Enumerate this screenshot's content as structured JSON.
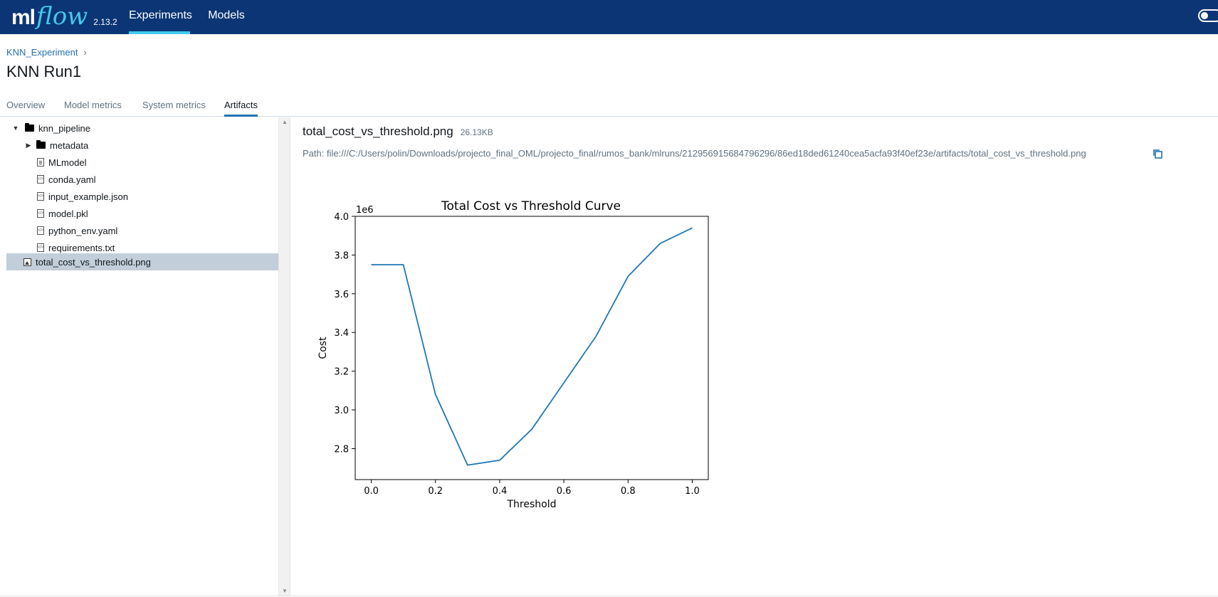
{
  "topbar": {
    "logo_ml": "ml",
    "logo_flow": "flow",
    "version": "2.13.2",
    "nav": [
      {
        "label": "Experiments",
        "active": true
      },
      {
        "label": "Models",
        "active": false
      }
    ],
    "bg_color": "#0b3574",
    "accent_color": "#43c9ed"
  },
  "header": {
    "breadcrumb": "KNN_Experiment",
    "breadcrumb_separator": "›",
    "title": "KNN Run1"
  },
  "tabs": [
    {
      "label": "Overview",
      "active": false
    },
    {
      "label": "Model metrics",
      "active": false
    },
    {
      "label": "System metrics",
      "active": false
    },
    {
      "label": "Artifacts",
      "active": true
    }
  ],
  "tree": {
    "items": [
      {
        "label": "knn_pipeline",
        "type": "folder",
        "icon": "folder-icon",
        "expanded": true
      },
      {
        "label": "metadata",
        "type": "folder",
        "icon": "folder-icon",
        "expanded": false
      },
      {
        "label": "MLmodel",
        "type": "file",
        "icon": "file-icon"
      },
      {
        "label": "conda.yaml",
        "type": "file",
        "icon": "code-file-icon"
      },
      {
        "label": "input_example.json",
        "type": "file",
        "icon": "code-file-icon"
      },
      {
        "label": "model.pkl",
        "type": "file",
        "icon": "code-file-icon"
      },
      {
        "label": "python_env.yaml",
        "type": "file",
        "icon": "code-file-icon"
      },
      {
        "label": "requirements.txt",
        "type": "file",
        "icon": "code-file-icon"
      },
      {
        "label": "total_cost_vs_threshold.png",
        "type": "image",
        "icon": "image-file-icon",
        "selected": true
      }
    ]
  },
  "viewer": {
    "filename": "total_cost_vs_threshold.png",
    "size": "26.13KB",
    "path": "Path: file:///C:/Users/polin/Downloads/projecto_final_OML/projecto_final/rumos_bank/mlruns/212956915684796296/86ed18ded61240cea5acfa93f40ef23e/artifacts/total_cost_vs_threshold.png"
  },
  "chart_data": {
    "type": "line",
    "title": "Total Cost vs Threshold Curve",
    "xlabel": "Threshold",
    "ylabel": "Cost",
    "y_multiplier_label": "1e6",
    "x": [
      0.0,
      0.1,
      0.2,
      0.3,
      0.4,
      0.5,
      0.6,
      0.7,
      0.8,
      0.9,
      1.0
    ],
    "series": [
      {
        "values": [
          3.75,
          3.75,
          3.08,
          2.715,
          2.74,
          2.9,
          3.14,
          3.38,
          3.69,
          3.86,
          3.94
        ],
        "color": "#1f77b4"
      }
    ],
    "xlim": [
      -0.05,
      1.05
    ],
    "ylim": [
      2.64,
      4.0
    ],
    "xticks": [
      "0.0",
      "0.2",
      "0.4",
      "0.6",
      "0.8",
      "1.0"
    ],
    "yticks": [
      "2.8",
      "3.0",
      "3.2",
      "3.4",
      "3.6",
      "3.8",
      "4.0"
    ],
    "grid": false
  }
}
